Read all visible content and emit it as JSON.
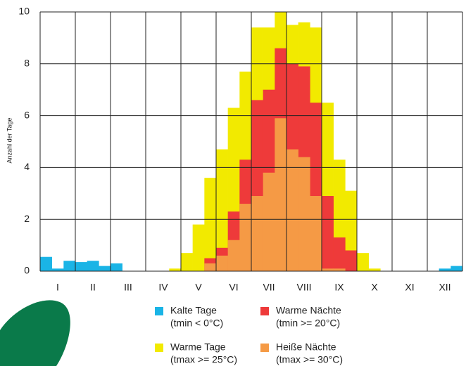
{
  "chart_data": {
    "type": "bar",
    "y_label": "Anzahl der Tage",
    "categories": [
      null,
      "I",
      null,
      null,
      "II",
      null,
      null,
      "III",
      null,
      null,
      "IV",
      null,
      null,
      "V",
      null,
      null,
      "VI",
      null,
      null,
      "VII",
      null,
      null,
      "VIII",
      null,
      null,
      "IX",
      null,
      null,
      "X",
      null,
      null,
      "XI",
      null,
      null,
      "XII",
      null
    ],
    "series": [
      {
        "name": "Kalte Tage",
        "note": "(tmin < 0°C)",
        "color": "#1ab4e6",
        "values": [
          0.55,
          0.1,
          0.4,
          0.35,
          0.4,
          0.2,
          0.3,
          0,
          0,
          0,
          0,
          0,
          0,
          0,
          0,
          0,
          0,
          0,
          0,
          0,
          0,
          0,
          0,
          0,
          0,
          0,
          0,
          0,
          0,
          0,
          0,
          0,
          0,
          0,
          0.1,
          0.2
        ]
      },
      {
        "name": "Warme Tage",
        "note": "(tmax >= 25°C)",
        "color": "#f2ea00",
        "values": [
          0,
          0,
          0,
          0,
          0,
          0,
          0,
          0,
          0,
          0,
          0,
          0.1,
          0.7,
          1.8,
          3.6,
          4.7,
          6.3,
          7.7,
          9.4,
          9.4,
          10.0,
          9.5,
          9.6,
          9.4,
          6.5,
          4.3,
          3.1,
          0.7,
          0.1,
          0,
          0,
          0,
          0,
          0,
          0,
          0
        ]
      },
      {
        "name": "Warme Nächte",
        "note": "(tmin >= 20°C)",
        "color": "#ee3a3a",
        "values": [
          0,
          0,
          0,
          0,
          0,
          0,
          0,
          0,
          0,
          0,
          0,
          0,
          0,
          0,
          0.5,
          0.9,
          2.3,
          4.3,
          6.6,
          7.0,
          8.6,
          8.0,
          7.9,
          6.5,
          2.9,
          1.3,
          0.8,
          0,
          0,
          0,
          0,
          0,
          0,
          0,
          0,
          0
        ]
      },
      {
        "name": "Heiße Nächte",
        "note": "(tmax >= 30°C)",
        "color": "#f59a45",
        "values": [
          0,
          0,
          0,
          0,
          0,
          0,
          0,
          0,
          0,
          0,
          0,
          0,
          0,
          0,
          0.3,
          0.6,
          1.2,
          2.6,
          2.9,
          3.8,
          5.9,
          4.7,
          4.4,
          2.9,
          0.1,
          0.1,
          0,
          0,
          0,
          0,
          0,
          0,
          0,
          0,
          0,
          0
        ]
      }
    ],
    "ylim": [
      0,
      10
    ],
    "yticks": [
      0,
      2,
      4,
      6,
      8,
      10
    ],
    "grid": true
  }
}
